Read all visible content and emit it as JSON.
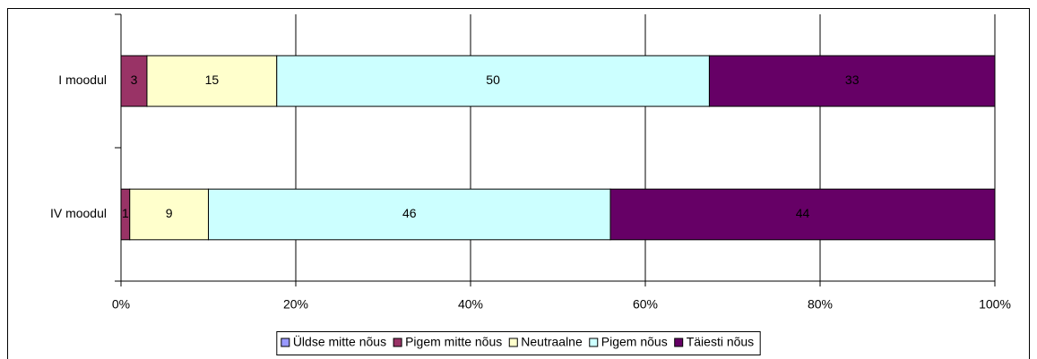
{
  "chart_data": {
    "type": "bar",
    "orientation": "horizontal",
    "stacking": "percent",
    "categories": [
      "I moodul",
      "IV moodul"
    ],
    "series": [
      {
        "name": "Üldse mitte nõus",
        "color": "#9999ff",
        "values": [
          0,
          0
        ]
      },
      {
        "name": "Pigem mitte nõus",
        "color": "#993366",
        "values": [
          3,
          1
        ]
      },
      {
        "name": "Neutraalne",
        "color": "#ffffcc",
        "values": [
          15,
          9
        ]
      },
      {
        "name": "Pigem nõus",
        "color": "#ccffff",
        "values": [
          50,
          46
        ]
      },
      {
        "name": "Täiesti nõus",
        "color": "#660066",
        "values": [
          33,
          44
        ]
      }
    ],
    "xlim": [
      0,
      100
    ],
    "xticks": [
      {
        "value": 0,
        "label": "0%"
      },
      {
        "value": 20,
        "label": "20%"
      },
      {
        "value": 40,
        "label": "40%"
      },
      {
        "value": 60,
        "label": "60%"
      },
      {
        "value": 80,
        "label": "80%"
      },
      {
        "value": 100,
        "label": "100%"
      }
    ],
    "grid": true,
    "legend": "bottom"
  }
}
